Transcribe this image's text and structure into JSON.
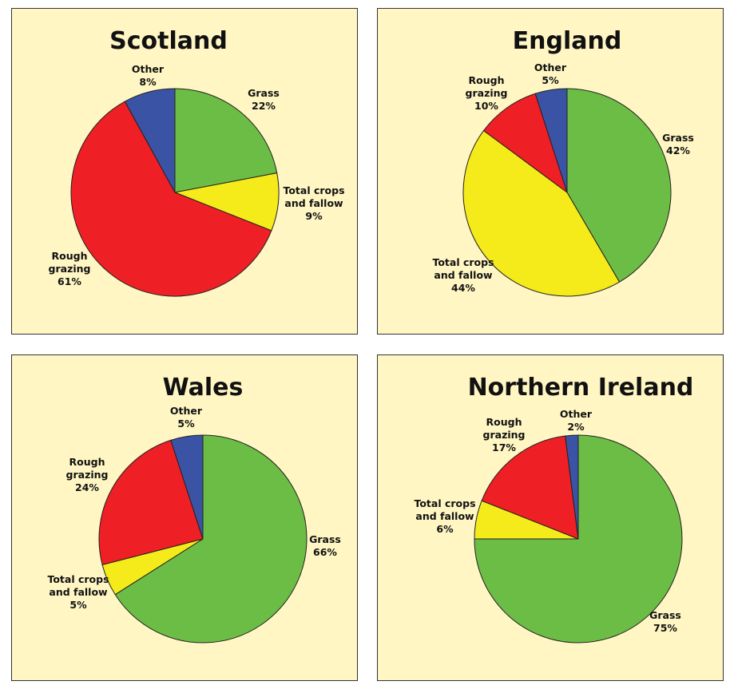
{
  "colors": {
    "Grass": "#6cbd45",
    "Total crops and fallow": "#f5ea1a",
    "Rough grazing": "#ee1f25",
    "Other": "#3a53a4"
  },
  "chart_data": [
    {
      "type": "pie",
      "title": "Scotland",
      "slices": [
        {
          "name": "Grass",
          "label_lines": [
            "Grass"
          ],
          "pct": "22%",
          "value": 22
        },
        {
          "name": "Total crops and fallow",
          "label_lines": [
            "Total crops",
            "and fallow"
          ],
          "pct": "9%",
          "value": 9
        },
        {
          "name": "Rough grazing",
          "label_lines": [
            "Rough",
            "grazing"
          ],
          "pct": "61%",
          "value": 61
        },
        {
          "name": "Other",
          "label_lines": [
            "Other"
          ],
          "pct": "8%",
          "value": 8
        }
      ]
    },
    {
      "type": "pie",
      "title": "England",
      "slices": [
        {
          "name": "Grass",
          "label_lines": [
            "Grass"
          ],
          "pct": "42%",
          "value": 42
        },
        {
          "name": "Total crops and fallow",
          "label_lines": [
            "Total crops",
            "and fallow"
          ],
          "pct": "44%",
          "value": 44
        },
        {
          "name": "Rough grazing",
          "label_lines": [
            "Rough",
            "grazing"
          ],
          "pct": "10%",
          "value": 10
        },
        {
          "name": "Other",
          "label_lines": [
            "Other"
          ],
          "pct": "5%",
          "value": 5
        }
      ]
    },
    {
      "type": "pie",
      "title": "Wales",
      "slices": [
        {
          "name": "Grass",
          "label_lines": [
            "Grass"
          ],
          "pct": "66%",
          "value": 66
        },
        {
          "name": "Total crops and fallow",
          "label_lines": [
            "Total crops",
            "and fallow"
          ],
          "pct": "5%",
          "value": 5
        },
        {
          "name": "Rough grazing",
          "label_lines": [
            "Rough",
            "grazing"
          ],
          "pct": "24%",
          "value": 24
        },
        {
          "name": "Other",
          "label_lines": [
            "Other"
          ],
          "pct": "5%",
          "value": 5
        }
      ]
    },
    {
      "type": "pie",
      "title": "Northern Ireland",
      "slices": [
        {
          "name": "Grass",
          "label_lines": [
            "Grass"
          ],
          "pct": "75%",
          "value": 75
        },
        {
          "name": "Total crops and fallow",
          "label_lines": [
            "Total crops",
            "and fallow"
          ],
          "pct": "6%",
          "value": 6
        },
        {
          "name": "Rough grazing",
          "label_lines": [
            "Rough",
            "grazing"
          ],
          "pct": "17%",
          "value": 17
        },
        {
          "name": "Other",
          "label_lines": [
            "Other"
          ],
          "pct": "2%",
          "value": 2
        }
      ]
    }
  ]
}
